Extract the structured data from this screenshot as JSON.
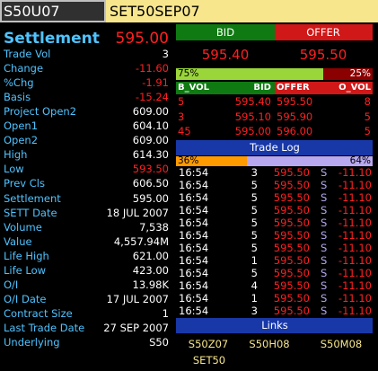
{
  "header": {
    "symbol": "S50U07",
    "series": "SET50SEP07"
  },
  "summary": {
    "label": "Settlement",
    "value": "595.00"
  },
  "fields": [
    {
      "label": "Trade Vol",
      "value": "3",
      "color": "#ffffff"
    },
    {
      "label": "Change",
      "value": "-11.60",
      "color": "#ff2020"
    },
    {
      "label": "%Chg",
      "value": "-1.91",
      "color": "#ff2020"
    },
    {
      "label": "Basis",
      "value": "-15.24",
      "color": "#ff2020"
    },
    {
      "label": "Project Open2",
      "value": "609.00",
      "color": "#ffffff"
    },
    {
      "label": "Open1",
      "value": "604.10",
      "color": "#ffffff"
    },
    {
      "label": "Open2",
      "value": "609.00",
      "color": "#ffffff"
    },
    {
      "label": "High",
      "value": "614.30",
      "color": "#ffffff"
    },
    {
      "label": "Low",
      "value": "593.50",
      "color": "#ff2020"
    },
    {
      "label": "Prev Cls",
      "value": "606.50",
      "color": "#ffffff"
    },
    {
      "label": "Settlement",
      "value": "595.00",
      "color": "#ffffff"
    },
    {
      "label": "SETT Date",
      "value": "18 JUL 2007",
      "color": "#ffffff"
    },
    {
      "label": "Volume",
      "value": "7,538",
      "color": "#ffffff"
    },
    {
      "label": "Value",
      "value": "4,557.94M",
      "color": "#ffffff"
    },
    {
      "label": "Life High",
      "value": "621.00",
      "color": "#ffffff"
    },
    {
      "label": "Life Low",
      "value": "423.00",
      "color": "#ffffff"
    },
    {
      "label": "O/I",
      "value": "13.98K",
      "color": "#ffffff"
    },
    {
      "label": "O/I Date",
      "value": "17 JUL 2007",
      "color": "#ffffff"
    },
    {
      "label": "Contract Size",
      "value": "1",
      "color": "#ffffff"
    },
    {
      "label": "Last Trade Date",
      "value": "27 SEP 2007",
      "color": "#ffffff"
    },
    {
      "label": "Underlying",
      "value": "S50",
      "color": "#ffffff"
    }
  ],
  "quote": {
    "bid_label": "BID",
    "offer_label": "OFFER",
    "bid": "595.40",
    "offer": "595.50",
    "bid_share": {
      "value": 75,
      "label": "75%"
    },
    "offer_share": {
      "value": 25,
      "label": "25%"
    }
  },
  "depth": {
    "columns": [
      "B_VOL",
      "BID",
      "OFFER",
      "O_VOL"
    ],
    "rows": [
      [
        "5",
        "595.40",
        "595.50",
        "8"
      ],
      [
        "3",
        "595.10",
        "595.90",
        "5"
      ],
      [
        "45",
        "595.00",
        "596.00",
        "5"
      ]
    ]
  },
  "trade_log": {
    "title": "Trade Log",
    "buy_share": {
      "value": 36,
      "label": "36%"
    },
    "sell_share": {
      "value": 64,
      "label": "64%"
    },
    "trades": [
      [
        "16:54",
        "3",
        "595.50",
        "S",
        "-11.10"
      ],
      [
        "16:54",
        "5",
        "595.50",
        "S",
        "-11.10"
      ],
      [
        "16:54",
        "5",
        "595.50",
        "S",
        "-11.10"
      ],
      [
        "16:54",
        "5",
        "595.50",
        "S",
        "-11.10"
      ],
      [
        "16:54",
        "5",
        "595.50",
        "S",
        "-11.10"
      ],
      [
        "16:54",
        "5",
        "595.50",
        "S",
        "-11.10"
      ],
      [
        "16:54",
        "5",
        "595.50",
        "S",
        "-11.10"
      ],
      [
        "16:54",
        "1",
        "595.50",
        "S",
        "-11.10"
      ],
      [
        "16:54",
        "5",
        "595.50",
        "S",
        "-11.10"
      ],
      [
        "16:54",
        "4",
        "595.50",
        "S",
        "-11.10"
      ],
      [
        "16:54",
        "1",
        "595.50",
        "S",
        "-11.10"
      ],
      [
        "16:54",
        "3",
        "595.50",
        "S",
        "-11.10"
      ]
    ]
  },
  "links": {
    "title": "Links",
    "items": [
      "S50Z07",
      "S50H08",
      "S50M08",
      "SET50"
    ]
  }
}
